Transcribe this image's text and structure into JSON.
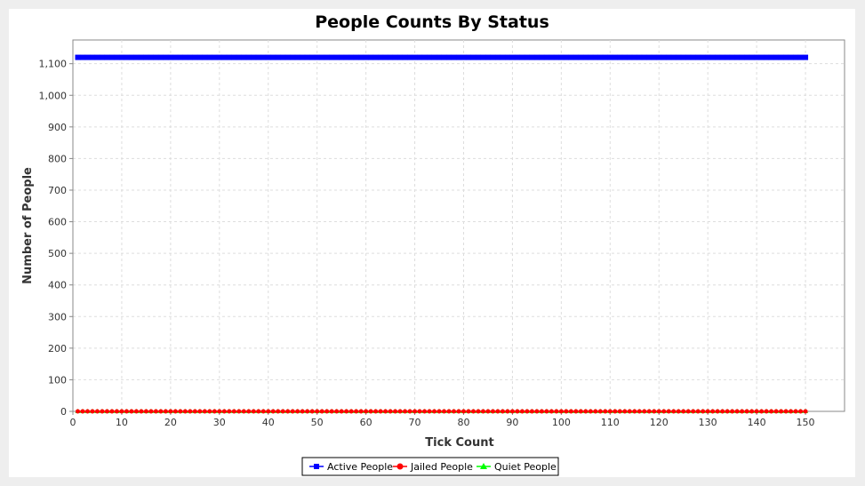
{
  "chart_data": {
    "type": "line",
    "title": "People Counts By Status",
    "xlabel": "Tick Count",
    "ylabel": "Number of People",
    "xlim": [
      0,
      158
    ],
    "ylim": [
      0,
      1175
    ],
    "xticks": [
      0,
      10,
      20,
      30,
      40,
      50,
      60,
      70,
      80,
      90,
      100,
      110,
      120,
      130,
      140,
      150
    ],
    "yticks": [
      0,
      100,
      200,
      300,
      400,
      500,
      600,
      700,
      800,
      900,
      1000,
      1100
    ],
    "ytick_labels": [
      "0",
      "100",
      "200",
      "300",
      "400",
      "500",
      "600",
      "700",
      "800",
      "900",
      "1,000",
      "1,100"
    ],
    "grid": true,
    "legend_position": "bottom",
    "x": {
      "start": 1,
      "end": 150,
      "step": 1
    },
    "series": [
      {
        "name": "Active People",
        "marker": "square",
        "color": "#0000ff",
        "value": 1120
      },
      {
        "name": "Jailed People",
        "marker": "circle",
        "color": "#ff0000",
        "value": 0
      },
      {
        "name": "Quiet People",
        "marker": "triangle",
        "color": "#00ff00",
        "value": 0
      }
    ]
  }
}
